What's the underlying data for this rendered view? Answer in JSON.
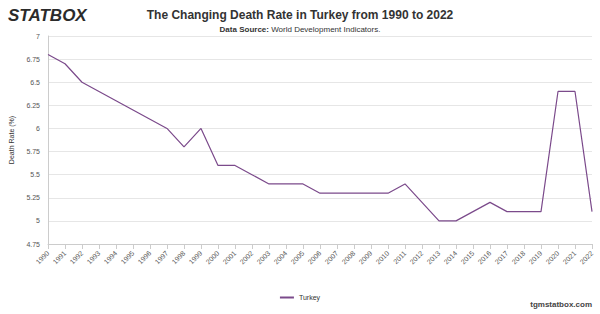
{
  "chart_data": {
    "type": "line",
    "title": "The Changing Death Rate in Turkey from 1990 to 2022",
    "subtitle": "Data Source: World Development Indicators.",
    "y_label": "Death Rate (%)",
    "annotations": [
      "STATBOX",
      "tgmstatbox.com"
    ],
    "categories": [
      "1990",
      "1991",
      "1992",
      "1993",
      "1994",
      "1995",
      "1996",
      "1997",
      "1998",
      "1999",
      "2000",
      "2001",
      "2002",
      "2003",
      "2004",
      "2005",
      "2006",
      "2007",
      "2008",
      "2009",
      "2010",
      "2011",
      "2012",
      "2013",
      "2014",
      "2015",
      "2016",
      "2017",
      "2018",
      "2019",
      "2020",
      "2021",
      "2022"
    ],
    "series": [
      {
        "name": "Turkey",
        "color": "#7b4a8b",
        "values": [
          6.8,
          6.7,
          6.5,
          6.4,
          6.3,
          6.2,
          6.1,
          6.0,
          5.8,
          6.0,
          5.6,
          5.6,
          5.5,
          5.4,
          5.4,
          5.4,
          5.3,
          5.3,
          5.3,
          5.3,
          5.3,
          5.4,
          5.2,
          5.0,
          5.0,
          5.1,
          5.2,
          5.1,
          5.1,
          5.1,
          6.4,
          6.4,
          5.1
        ]
      }
    ],
    "ylim": [
      4.75,
      7
    ],
    "yticks": [
      4.75,
      5,
      5.25,
      5.5,
      5.75,
      6,
      6.25,
      6.5,
      6.75,
      7
    ],
    "grid": true,
    "legend": "bottom"
  }
}
